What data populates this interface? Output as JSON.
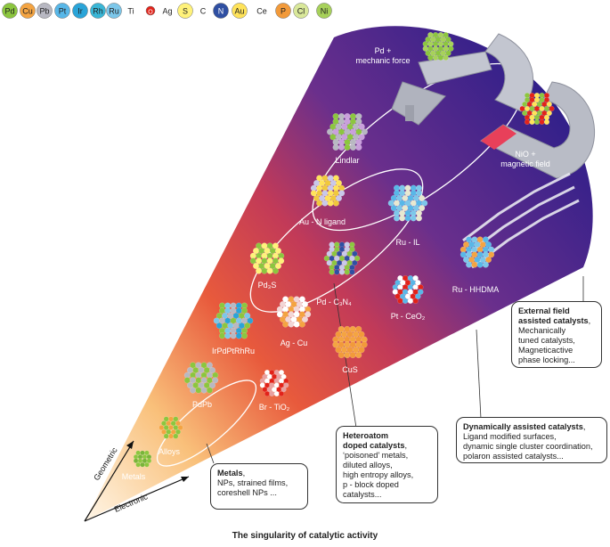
{
  "legend": [
    {
      "symbol": "Pd",
      "color": "#8cc63f"
    },
    {
      "symbol": "Cu",
      "color": "#f4a442"
    },
    {
      "symbol": "Pb",
      "color": "#b8b8c2"
    },
    {
      "symbol": "Pt",
      "color": "#58b7e8"
    },
    {
      "symbol": "Ir",
      "color": "#2aa4d8"
    },
    {
      "symbol": "Rh",
      "color": "#3ab6d6"
    },
    {
      "symbol": "Ru",
      "color": "#7cc7ea"
    },
    {
      "symbol": "Ti",
      "color": "#ffffff"
    },
    {
      "symbol": "O",
      "color": "#e2231a"
    },
    {
      "symbol": "Ag",
      "color": "#ffffff"
    },
    {
      "symbol": "S",
      "color": "#fff27a"
    },
    {
      "symbol": "C",
      "color": "#ffffff"
    },
    {
      "symbol": "N",
      "color": "#2f4fa2"
    },
    {
      "symbol": "Au",
      "color": "#ffe35a"
    },
    {
      "symbol": "Ce",
      "color": "#ffffff"
    },
    {
      "symbol": "P",
      "color": "#f29a3a"
    },
    {
      "symbol": "Cl",
      "color": "#d9e89a"
    },
    {
      "symbol": "Ni",
      "color": "#a7d15a"
    }
  ],
  "axes": {
    "geometric": "Geometric",
    "electronic": "Electronic"
  },
  "clusters": [
    {
      "id": "metals",
      "label": "Metals"
    },
    {
      "id": "alloys",
      "label": "Alloys"
    },
    {
      "id": "pdpb",
      "label": "PdPb"
    },
    {
      "id": "br-tio2",
      "label": "Br - TiO₂"
    },
    {
      "id": "irpdptrhru",
      "label": "IrPdPtRhRu"
    },
    {
      "id": "ag-cu",
      "label": "Ag - Cu"
    },
    {
      "id": "cus",
      "label": "CuS"
    },
    {
      "id": "pd3s",
      "label": "Pd₃S"
    },
    {
      "id": "pd-c3n4",
      "label": "Pd - C₃N₄"
    },
    {
      "id": "pt-ceo2",
      "label": "Pt - CeO₂"
    },
    {
      "id": "au-n",
      "label": "Au - N ligand"
    },
    {
      "id": "ru-il",
      "label": "Ru - IL"
    },
    {
      "id": "ru-hhdma",
      "label": "Ru - HHDMA"
    },
    {
      "id": "lindlar",
      "label": "Lindlar"
    },
    {
      "id": "pd-force",
      "label": "Pd +\nmechanic force"
    },
    {
      "id": "nio-mag",
      "label": "NiO +\nmagnetic field"
    }
  ],
  "boxes": {
    "metals": {
      "title": "Metals",
      "rest": ",\nNPs, strained films,\ncoreshell NPs ..."
    },
    "heteroatom": {
      "title": "Heteroatom\ndoped catalysts",
      "rest": ",\n‘poisoned’ metals,\ndiluted alloys,\nhigh entropy alloys,\np - block doped\ncatalysts..."
    },
    "dynamic": {
      "title": "Dynamically assisted catalysts",
      "rest": ",\nLigand modified surfaces,\ndynamic single cluster coordination,\npolaron assisted catalysts..."
    },
    "external": {
      "title": "External field\nassisted catalysts",
      "rest": ",\nMechanically\ntuned catalysts,\nMagneticactive\nphase locking..."
    }
  },
  "caption": "The singularity of catalytic activity"
}
